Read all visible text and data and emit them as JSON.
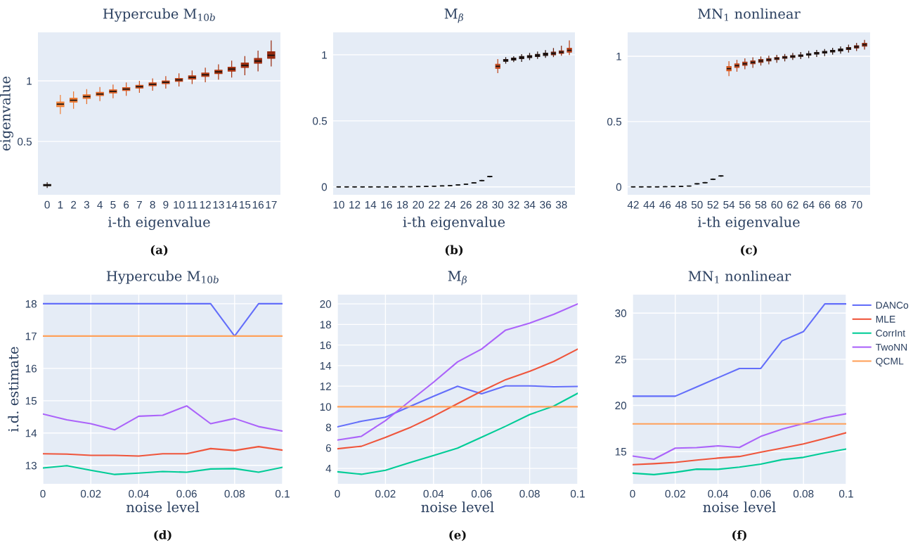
{
  "chart_data": [
    {
      "type": "box",
      "title": "Hypercube M$_{10b}$",
      "xlabel": "i-th eigenvalue",
      "ylabel": "eigenvalue",
      "annotations": [
        "(a)"
      ],
      "grid": "y",
      "categories": [
        "0",
        "1",
        "2",
        "3",
        "4",
        "5",
        "6",
        "7",
        "8",
        "9",
        "10",
        "11",
        "12",
        "13",
        "14",
        "15",
        "16",
        "17"
      ],
      "colors": [
        "#2a1a10",
        "#f0843c",
        "#ec7a34",
        "#e8722e",
        "#e46a2a",
        "#de6226",
        "#d85a22",
        "#d2541e",
        "#cc4e1c",
        "#c6481a",
        "#c04418",
        "#ba4016",
        "#b43c14",
        "#ae3812",
        "#a83412",
        "#a23010",
        "#9c2c10",
        "#962a10"
      ],
      "boxes": [
        {
          "low": 0.12,
          "q1": 0.135,
          "median": 0.14,
          "q3": 0.145,
          "high": 0.16
        },
        {
          "low": 0.73,
          "q1": 0.787,
          "median": 0.808,
          "q3": 0.826,
          "high": 0.88
        },
        {
          "low": 0.773,
          "q1": 0.824,
          "median": 0.84,
          "q3": 0.857,
          "high": 0.909
        },
        {
          "low": 0.812,
          "q1": 0.855,
          "median": 0.87,
          "q3": 0.885,
          "high": 0.928
        },
        {
          "low": 0.837,
          "q1": 0.878,
          "median": 0.891,
          "q3": 0.905,
          "high": 0.946
        },
        {
          "low": 0.86,
          "q1": 0.9,
          "median": 0.913,
          "q3": 0.926,
          "high": 0.965
        },
        {
          "low": 0.88,
          "q1": 0.92,
          "median": 0.932,
          "q3": 0.945,
          "high": 0.983
        },
        {
          "low": 0.905,
          "q1": 0.94,
          "median": 0.952,
          "q3": 0.963,
          "high": 0.996
        },
        {
          "low": 0.922,
          "q1": 0.96,
          "median": 0.971,
          "q3": 0.983,
          "high": 1.017
        },
        {
          "low": 0.94,
          "q1": 0.977,
          "median": 0.988,
          "q3": 1.0,
          "high": 1.035
        },
        {
          "low": 0.957,
          "q1": 0.995,
          "median": 1.008,
          "q3": 1.02,
          "high": 1.058
        },
        {
          "low": 0.977,
          "q1": 1.015,
          "median": 1.029,
          "q3": 1.042,
          "high": 1.081
        },
        {
          "low": 0.992,
          "q1": 1.036,
          "median": 1.05,
          "q3": 1.064,
          "high": 1.105
        },
        {
          "low": 1.014,
          "q1": 1.06,
          "median": 1.074,
          "q3": 1.088,
          "high": 1.132
        },
        {
          "low": 1.031,
          "q1": 1.08,
          "median": 1.097,
          "q3": 1.112,
          "high": 1.163
        },
        {
          "low": 1.05,
          "q1": 1.11,
          "median": 1.128,
          "q3": 1.147,
          "high": 1.2
        },
        {
          "low": 1.081,
          "q1": 1.145,
          "median": 1.163,
          "q3": 1.185,
          "high": 1.246
        },
        {
          "low": 1.122,
          "q1": 1.185,
          "median": 1.211,
          "q3": 1.24,
          "high": 1.329
        }
      ],
      "ylim": [
        0.06,
        1.4
      ],
      "yticks": [
        0.5,
        1
      ]
    },
    {
      "type": "box",
      "title": "M$_{β}$",
      "xlabel": "i-th eigenvalue",
      "annotations": [
        "(b)"
      ],
      "grid": "y",
      "categories": [
        "10",
        null,
        "12",
        null,
        "14",
        null,
        "16",
        null,
        "18",
        null,
        "20",
        null,
        "22",
        null,
        "24",
        null,
        "26",
        null,
        "28",
        null,
        "30",
        null,
        "32",
        null,
        "34",
        null,
        "36",
        null,
        "38",
        null
      ],
      "colors": [
        "#222222",
        "#222222",
        "#222222",
        "#222222",
        "#222222",
        "#222222",
        "#222222",
        "#222222",
        "#222222",
        "#222222",
        "#222222",
        "#222222",
        "#222222",
        "#222222",
        "#222222",
        "#222222",
        "#222222",
        "#222222",
        "#222222",
        "#222222",
        "#c04a20",
        "#2a1510",
        "#2a1510",
        "#2a1510",
        "#2a1510",
        "#2a1510",
        "#2a1510",
        "#6a2010",
        "#8a2a10",
        "#b84018"
      ],
      "boxes": [
        {
          "low": 0,
          "q1": 0,
          "median": 0,
          "q3": 0,
          "high": 0
        },
        {
          "low": 0,
          "q1": 0,
          "median": 0,
          "q3": 0,
          "high": 0
        },
        {
          "low": 0,
          "q1": 0,
          "median": 0,
          "q3": 0,
          "high": 0
        },
        {
          "low": 0,
          "q1": 0,
          "median": 0,
          "q3": 0,
          "high": 0
        },
        {
          "low": 0,
          "q1": 0,
          "median": 0,
          "q3": 0,
          "high": 0
        },
        {
          "low": 0,
          "q1": 0,
          "median": 0,
          "q3": 0,
          "high": 0
        },
        {
          "low": 0,
          "q1": 0,
          "median": 0,
          "q3": 0,
          "high": 0
        },
        {
          "low": 0,
          "q1": 0,
          "median": 0,
          "q3": 0,
          "high": 0
        },
        {
          "low": 0.001,
          "q1": 0.001,
          "median": 0.001,
          "q3": 0.001,
          "high": 0.001
        },
        {
          "low": 0.001,
          "q1": 0.001,
          "median": 0.001,
          "q3": 0.001,
          "high": 0.001
        },
        {
          "low": 0.002,
          "q1": 0.002,
          "median": 0.002,
          "q3": 0.002,
          "high": 0.002
        },
        {
          "low": 0.003,
          "q1": 0.003,
          "median": 0.003,
          "q3": 0.003,
          "high": 0.003
        },
        {
          "low": 0.005,
          "q1": 0.005,
          "median": 0.005,
          "q3": 0.005,
          "high": 0.005
        },
        {
          "low": 0.007,
          "q1": 0.007,
          "median": 0.007,
          "q3": 0.007,
          "high": 0.007
        },
        {
          "low": 0.01,
          "q1": 0.01,
          "median": 0.01,
          "q3": 0.01,
          "high": 0.01
        },
        {
          "low": 0.015,
          "q1": 0.015,
          "median": 0.015,
          "q3": 0.015,
          "high": 0.015
        },
        {
          "low": 0.02,
          "q1": 0.02,
          "median": 0.02,
          "q3": 0.02,
          "high": 0.02
        },
        {
          "low": 0.028,
          "q1": 0.029,
          "median": 0.03,
          "q3": 0.031,
          "high": 0.032
        },
        {
          "low": 0.046,
          "q1": 0.047,
          "median": 0.048,
          "q3": 0.049,
          "high": 0.05
        },
        {
          "low": 0.075,
          "q1": 0.076,
          "median": 0.078,
          "q3": 0.08,
          "high": 0.081
        },
        {
          "low": 0.865,
          "q1": 0.897,
          "median": 0.913,
          "q3": 0.929,
          "high": 0.965
        },
        {
          "low": 0.936,
          "q1": 0.95,
          "median": 0.957,
          "q3": 0.965,
          "high": 0.979
        },
        {
          "low": 0.949,
          "q1": 0.96,
          "median": 0.968,
          "q3": 0.976,
          "high": 0.986
        },
        {
          "low": 0.95,
          "q1": 0.971,
          "median": 0.979,
          "q3": 0.987,
          "high": 1.002
        },
        {
          "low": 0.963,
          "q1": 0.978,
          "median": 0.986,
          "q3": 0.994,
          "high": 1.011
        },
        {
          "low": 0.972,
          "q1": 0.987,
          "median": 0.995,
          "q3": 1.003,
          "high": 1.021
        },
        {
          "low": 0.98,
          "q1": 0.995,
          "median": 1.004,
          "q3": 1.012,
          "high": 1.032
        },
        {
          "low": 0.986,
          "q1": 1.0,
          "median": 1.011,
          "q3": 1.02,
          "high": 1.048
        },
        {
          "low": 0.996,
          "q1": 1.01,
          "median": 1.02,
          "q3": 1.03,
          "high": 1.066
        },
        {
          "low": 1.002,
          "q1": 1.02,
          "median": 1.034,
          "q3": 1.05,
          "high": 1.106
        }
      ],
      "ylim": [
        -0.06,
        1.17
      ],
      "yticks": [
        0,
        0.5,
        1
      ]
    },
    {
      "type": "box",
      "title": "MN$_{1}$ nonlinear",
      "xlabel": "i-th eigenvalue",
      "annotations": [
        "(c)"
      ],
      "grid": "y",
      "categories": [
        "42",
        null,
        "44",
        null,
        "46",
        null,
        "48",
        null,
        "50",
        null,
        "52",
        null,
        "54",
        null,
        "56",
        null,
        "58",
        null,
        "60",
        null,
        "62",
        null,
        "64",
        null,
        "66",
        null,
        "68",
        null,
        "70",
        null
      ],
      "colors": [
        "#222222",
        "#222222",
        "#222222",
        "#222222",
        "#222222",
        "#222222",
        "#222222",
        "#222222",
        "#222222",
        "#222222",
        "#222222",
        "#222222",
        "#d85a20",
        "#c04a20",
        "#a83a18",
        "#983418",
        "#883014",
        "#782a12",
        "#6a2410",
        "#5a2010",
        "#4a1c10",
        "#3a1810",
        "#2a1510",
        "#2a1510",
        "#2a1510",
        "#2a1510",
        "#2a1510",
        "#4a1c10",
        "#6a2010",
        "#8a2a10"
      ],
      "boxes": [
        {
          "low": 0,
          "q1": 0,
          "median": 0,
          "q3": 0,
          "high": 0
        },
        {
          "low": 0,
          "q1": 0,
          "median": 0,
          "q3": 0,
          "high": 0
        },
        {
          "low": 0,
          "q1": 0,
          "median": 0,
          "q3": 0,
          "high": 0
        },
        {
          "low": 0,
          "q1": 0,
          "median": 0,
          "q3": 0,
          "high": 0
        },
        {
          "low": 0.001,
          "q1": 0.001,
          "median": 0.001,
          "q3": 0.001,
          "high": 0.001
        },
        {
          "low": 0.002,
          "q1": 0.002,
          "median": 0.002,
          "q3": 0.002,
          "high": 0.002
        },
        {
          "low": 0.003,
          "q1": 0.003,
          "median": 0.003,
          "q3": 0.003,
          "high": 0.003
        },
        {
          "low": 0.006,
          "q1": 0.006,
          "median": 0.006,
          "q3": 0.006,
          "high": 0.006
        },
        {
          "low": 0.021,
          "q1": 0.022,
          "median": 0.023,
          "q3": 0.024,
          "high": 0.025
        },
        {
          "low": 0.03,
          "q1": 0.031,
          "median": 0.032,
          "q3": 0.033,
          "high": 0.034
        },
        {
          "low": 0.055,
          "q1": 0.057,
          "median": 0.058,
          "q3": 0.059,
          "high": 0.061
        },
        {
          "low": 0.08,
          "q1": 0.082,
          "median": 0.083,
          "q3": 0.084,
          "high": 0.086
        },
        {
          "low": 0.851,
          "q1": 0.888,
          "median": 0.905,
          "q3": 0.921,
          "high": 0.959
        },
        {
          "low": 0.885,
          "q1": 0.914,
          "median": 0.928,
          "q3": 0.942,
          "high": 0.969
        },
        {
          "low": 0.903,
          "q1": 0.93,
          "median": 0.942,
          "q3": 0.955,
          "high": 0.98
        },
        {
          "low": 0.915,
          "q1": 0.942,
          "median": 0.953,
          "q3": 0.964,
          "high": 0.989
        },
        {
          "low": 0.932,
          "q1": 0.953,
          "median": 0.964,
          "q3": 0.975,
          "high": 0.995
        },
        {
          "low": 0.942,
          "q1": 0.964,
          "median": 0.973,
          "q3": 0.982,
          "high": 1.0
        },
        {
          "low": 0.953,
          "q1": 0.974,
          "median": 0.982,
          "q3": 0.99,
          "high": 1.007
        },
        {
          "low": 0.964,
          "q1": 0.984,
          "median": 0.991,
          "q3": 0.998,
          "high": 1.014
        },
        {
          "low": 0.975,
          "q1": 0.991,
          "median": 0.998,
          "q3": 1.005,
          "high": 1.022
        },
        {
          "low": 0.982,
          "q1": 0.999,
          "median": 1.005,
          "q3": 1.011,
          "high": 1.029
        },
        {
          "low": 0.989,
          "q1": 1.008,
          "median": 1.014,
          "q3": 1.02,
          "high": 1.038
        },
        {
          "low": 0.998,
          "q1": 1.017,
          "median": 1.023,
          "q3": 1.029,
          "high": 1.045
        },
        {
          "low": 1.005,
          "q1": 1.025,
          "median": 1.031,
          "q3": 1.037,
          "high": 1.052
        },
        {
          "low": 1.016,
          "q1": 1.033,
          "median": 1.04,
          "q3": 1.046,
          "high": 1.061
        },
        {
          "low": 1.023,
          "q1": 1.041,
          "median": 1.049,
          "q3": 1.056,
          "high": 1.072
        },
        {
          "low": 1.032,
          "q1": 1.051,
          "median": 1.059,
          "q3": 1.067,
          "high": 1.085
        },
        {
          "low": 1.043,
          "q1": 1.063,
          "median": 1.072,
          "q3": 1.081,
          "high": 1.099
        },
        {
          "low": 1.054,
          "q1": 1.077,
          "median": 1.088,
          "q3": 1.099,
          "high": 1.122
        }
      ],
      "ylim": [
        -0.061,
        1.183
      ],
      "yticks": [
        0,
        0.5,
        1
      ]
    },
    {
      "type": "line",
      "title": "Hypercube M$_{10b}$",
      "xlabel": "noise level",
      "ylabel": "i.d. estimate",
      "annotations": [
        "(d)"
      ],
      "grid": true,
      "x": [
        0,
        0.01,
        0.02,
        0.03,
        0.04,
        0.05,
        0.06,
        0.07,
        0.08,
        0.09,
        0.1
      ],
      "series": [
        {
          "color": "#636efa",
          "values": [
            18,
            18,
            18,
            18,
            18,
            18,
            18,
            18,
            17,
            18,
            18
          ]
        },
        {
          "color": "#ef553b",
          "values": [
            13.36,
            13.35,
            13.31,
            13.31,
            13.29,
            13.36,
            13.36,
            13.52,
            13.46,
            13.58,
            13.47
          ]
        },
        {
          "color": "#00cc96",
          "values": [
            12.92,
            12.99,
            12.85,
            12.72,
            12.76,
            12.81,
            12.79,
            12.89,
            12.9,
            12.79,
            12.94
          ]
        },
        {
          "color": "#ab63fa",
          "values": [
            14.59,
            14.41,
            14.29,
            14.1,
            14.52,
            14.55,
            14.84,
            14.29,
            14.45,
            14.2,
            14.06
          ]
        },
        {
          "color": "#ffa15a",
          "values": [
            17,
            17,
            17,
            17,
            17,
            17,
            17,
            17,
            17,
            17,
            17
          ]
        }
      ],
      "xlim": [
        0,
        0.1
      ],
      "xticks": [
        0,
        0.02,
        0.04,
        0.06,
        0.08,
        0.1
      ],
      "ylim": [
        12.43,
        18.28
      ],
      "yticks": [
        13,
        14,
        15,
        16,
        17,
        18
      ]
    },
    {
      "type": "line",
      "title": "M$_{β}$",
      "xlabel": "noise level",
      "annotations": [
        "(e)"
      ],
      "grid": true,
      "x": [
        0,
        0.01,
        0.02,
        0.03,
        0.04,
        0.05,
        0.06,
        0.07,
        0.08,
        0.09,
        0.1
      ],
      "series": [
        {
          "color": "#636efa",
          "values": [
            8.04,
            8.59,
            8.98,
            10.01,
            11.02,
            11.99,
            11.26,
            12.03,
            12.03,
            11.94,
            11.97
          ]
        },
        {
          "color": "#ef553b",
          "values": [
            5.91,
            6.15,
            7.01,
            7.95,
            9.07,
            10.3,
            11.51,
            12.63,
            13.44,
            14.4,
            15.61
          ]
        },
        {
          "color": "#00cc96",
          "values": [
            3.67,
            3.43,
            3.82,
            4.55,
            5.25,
            5.97,
            7.03,
            8.1,
            9.24,
            10.06,
            11.31
          ]
        },
        {
          "color": "#ab63fa",
          "values": [
            6.76,
            7.12,
            8.65,
            10.52,
            12.38,
            14.36,
            15.61,
            17.45,
            18.13,
            18.99,
            20
          ]
        },
        {
          "color": "#ffa15a",
          "values": [
            10,
            10,
            10,
            10,
            10,
            10,
            10,
            10,
            10,
            10,
            10
          ]
        }
      ],
      "xlim": [
        0,
        0.1
      ],
      "xticks": [
        0,
        0.02,
        0.04,
        0.06,
        0.08,
        0.1
      ],
      "ylim": [
        2.5,
        20.9
      ],
      "yticks": [
        4,
        6,
        8,
        10,
        12,
        14,
        16,
        18,
        20
      ]
    },
    {
      "type": "line",
      "title": "MN$_{1}$ nonlinear",
      "xlabel": "noise level",
      "annotations": [
        "(f)"
      ],
      "grid": true,
      "legend": "right",
      "x": [
        0,
        0.01,
        0.02,
        0.03,
        0.04,
        0.05,
        0.06,
        0.07,
        0.08,
        0.09,
        0.1
      ],
      "series": [
        {
          "name": "DANCo",
          "color": "#636efa",
          "values": [
            21,
            21,
            21,
            22,
            23,
            24,
            24,
            27,
            28,
            31,
            31
          ]
        },
        {
          "name": "MLE",
          "color": "#ef553b",
          "values": [
            13.58,
            13.68,
            13.83,
            14.07,
            14.29,
            14.46,
            14.93,
            15.37,
            15.83,
            16.42,
            17.03
          ]
        },
        {
          "name": "CorrInt",
          "color": "#00cc96",
          "values": [
            12.65,
            12.5,
            12.75,
            13.09,
            13.07,
            13.31,
            13.63,
            14.12,
            14.37,
            14.85,
            15.27
          ]
        },
        {
          "name": "TwoNN",
          "color": "#ab63fa",
          "values": [
            14.51,
            14.17,
            15.37,
            15.42,
            15.61,
            15.44,
            16.64,
            17.42,
            18.04,
            18.67,
            19.09
          ]
        },
        {
          "name": "QCML",
          "color": "#ffa15a",
          "values": [
            18,
            18,
            18,
            18,
            18,
            18,
            18,
            18,
            18,
            18,
            18
          ]
        }
      ],
      "xlim": [
        0,
        0.1
      ],
      "xticks": [
        0,
        0.02,
        0.04,
        0.06,
        0.08,
        0.1
      ],
      "ylim": [
        11.5,
        32
      ],
      "yticks": [
        15,
        20,
        25,
        30
      ]
    }
  ]
}
